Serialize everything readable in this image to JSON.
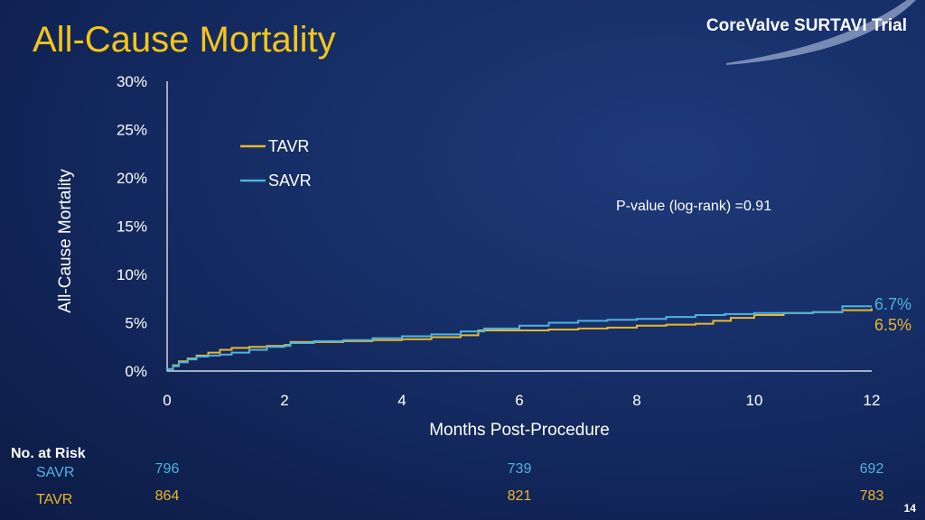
{
  "slide": {
    "title": "All-Cause Mortality",
    "brand": "CoreValve SURTAVI Trial",
    "page_number": "14"
  },
  "colors": {
    "title": "#f5c518",
    "tavr": "#e9b82a",
    "savr": "#4fb3e0",
    "axis": "#ffffff"
  },
  "chart_data": {
    "type": "line",
    "xlabel": "Months Post-Procedure",
    "ylabel": "All-Cause Mortality",
    "xlim": [
      0,
      12
    ],
    "ylim": [
      0,
      30
    ],
    "xticks": [
      0,
      2,
      4,
      6,
      8,
      10,
      12
    ],
    "yticks": [
      0,
      5,
      10,
      15,
      20,
      25,
      30
    ],
    "ytick_labels": [
      "0%",
      "5%",
      "10%",
      "15%",
      "20%",
      "25%",
      "30%"
    ],
    "legend_position": "upper-left",
    "annotation": "P-value (log-rank) =0.91",
    "series": [
      {
        "name": "TAVR",
        "color": "#e9b82a",
        "end_label": "6.5%",
        "x": [
          0,
          0.1,
          0.2,
          0.35,
          0.5,
          0.7,
          0.9,
          1.1,
          1.4,
          1.7,
          2.0,
          2.1,
          2.5,
          3.0,
          3.5,
          4.0,
          4.5,
          5.0,
          5.3,
          6.0,
          6.5,
          7.0,
          7.5,
          8.0,
          8.5,
          9.0,
          9.3,
          9.6,
          10.0,
          10.5,
          11.0,
          11.5,
          12.0
        ],
        "y": [
          0.2,
          0.6,
          1.0,
          1.3,
          1.6,
          1.9,
          2.2,
          2.4,
          2.5,
          2.6,
          2.7,
          3.0,
          3.0,
          3.1,
          3.2,
          3.3,
          3.5,
          3.7,
          4.2,
          4.2,
          4.3,
          4.4,
          4.5,
          4.7,
          4.8,
          4.9,
          5.2,
          5.5,
          5.8,
          6.0,
          6.1,
          6.3,
          6.5
        ]
      },
      {
        "name": "SAVR",
        "color": "#4fb3e0",
        "end_label": "6.7%",
        "x": [
          0,
          0.1,
          0.2,
          0.35,
          0.5,
          0.7,
          0.9,
          1.1,
          1.4,
          1.7,
          2.0,
          2.1,
          2.5,
          3.0,
          3.5,
          4.0,
          4.5,
          5.0,
          5.4,
          6.0,
          6.5,
          7.0,
          7.5,
          8.0,
          8.5,
          9.0,
          9.5,
          10.0,
          10.5,
          11.0,
          11.5,
          12.0
        ],
        "y": [
          0.2,
          0.5,
          0.9,
          1.2,
          1.5,
          1.6,
          1.7,
          1.9,
          2.2,
          2.5,
          2.6,
          2.9,
          3.1,
          3.2,
          3.4,
          3.6,
          3.8,
          4.1,
          4.4,
          4.7,
          5.0,
          5.2,
          5.3,
          5.4,
          5.6,
          5.8,
          5.9,
          6.0,
          6.0,
          6.1,
          6.7,
          6.7
        ]
      }
    ]
  },
  "risk_table": {
    "heading": "No. at Risk",
    "rows": [
      {
        "label": "SAVR",
        "color": "#4fb3e0",
        "months": [
          0,
          6,
          12
        ],
        "values": [
          "796",
          "739",
          "692"
        ]
      },
      {
        "label": "TAVR",
        "color": "#e9b82a",
        "months": [
          0,
          6,
          12
        ],
        "values": [
          "864",
          "821",
          "783"
        ]
      }
    ]
  }
}
